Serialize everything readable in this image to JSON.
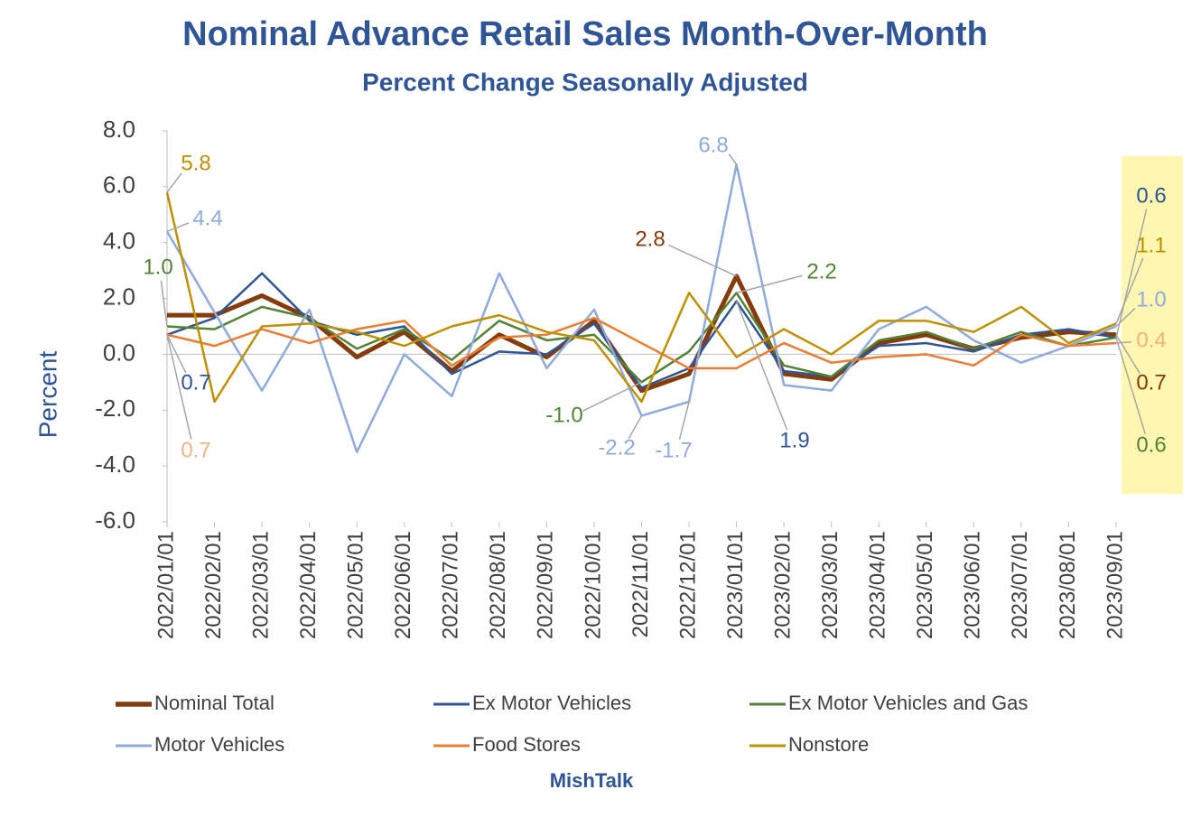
{
  "chart_data": {
    "type": "line",
    "title": "Nominal Advance Retail Sales Month-Over-Month",
    "subtitle": "Percent Change Seasonally Adjusted",
    "y_label": "Percent",
    "footer": "MishTalk",
    "categories": [
      "2022/01/01",
      "2022/02/01",
      "2022/03/01",
      "2022/04/01",
      "2022/05/01",
      "2022/06/01",
      "2022/07/01",
      "2022/08/01",
      "2022/09/01",
      "2022/10/01",
      "2022/11/01",
      "2022/12/01",
      "2023/01/01",
      "2023/02/01",
      "2023/03/01",
      "2023/04/01",
      "2023/05/01",
      "2023/06/01",
      "2023/07/01",
      "2023/08/01",
      "2023/09/01"
    ],
    "ylim": [
      -6,
      8
    ],
    "yticks": [
      {
        "value": -6,
        "label": "-6.0"
      },
      {
        "value": -4,
        "label": "-4.0"
      },
      {
        "value": -2,
        "label": "-2.0"
      },
      {
        "value": 0,
        "label": "0.0"
      },
      {
        "value": 2,
        "label": "2.0"
      },
      {
        "value": 4,
        "label": "4.0"
      },
      {
        "value": 6,
        "label": "6.0"
      },
      {
        "value": 8,
        "label": "8.0"
      }
    ],
    "grid": false,
    "series": [
      {
        "name": "Nominal Total",
        "color": "#843c0c",
        "values": [
          1.4,
          1.4,
          2.1,
          1.3,
          -0.1,
          0.8,
          -0.6,
          0.7,
          -0.1,
          1.2,
          -1.3,
          -0.7,
          2.8,
          -0.7,
          -0.9,
          0.4,
          0.7,
          0.2,
          0.6,
          0.8,
          0.7
        ],
        "value_labels": [
          null,
          null,
          null,
          null,
          null,
          null,
          null,
          null,
          null,
          null,
          null,
          null,
          "2.8",
          null,
          null,
          null,
          null,
          null,
          null,
          null,
          "0.7"
        ]
      },
      {
        "name": "Ex Motor Vehicles",
        "color": "#2f5597",
        "values": [
          0.7,
          1.3,
          2.9,
          1.2,
          0.7,
          1.0,
          -0.7,
          0.1,
          0.0,
          1.1,
          -1.2,
          -0.5,
          1.9,
          -0.6,
          -0.8,
          0.3,
          0.4,
          0.1,
          0.7,
          0.9,
          0.6
        ],
        "value_labels": [
          "0.7",
          null,
          null,
          null,
          null,
          null,
          null,
          null,
          null,
          null,
          null,
          null,
          "1.9",
          null,
          null,
          null,
          null,
          null,
          null,
          null,
          "0.6"
        ]
      },
      {
        "name": "Ex Motor Vehicles and Gas",
        "color": "#548235",
        "values": [
          1.0,
          0.9,
          1.7,
          1.3,
          0.2,
          0.9,
          -0.2,
          1.2,
          0.5,
          0.7,
          -1.0,
          0.1,
          2.2,
          -0.4,
          -0.8,
          0.5,
          0.8,
          0.2,
          0.8,
          0.3,
          0.6
        ],
        "value_labels": [
          "1.0",
          null,
          null,
          null,
          null,
          null,
          null,
          null,
          null,
          null,
          "-1.0",
          null,
          "2.2",
          null,
          null,
          null,
          null,
          null,
          null,
          null,
          "0.6"
        ]
      },
      {
        "name": "Motor Vehicles",
        "color": "#8faadc",
        "values": [
          4.4,
          1.5,
          -1.3,
          1.6,
          -3.5,
          0.0,
          -1.5,
          2.9,
          -0.5,
          1.6,
          -2.2,
          -1.7,
          6.8,
          -1.1,
          -1.3,
          0.9,
          1.7,
          0.5,
          -0.3,
          0.3,
          1.0
        ],
        "value_labels": [
          "4.4",
          null,
          null,
          null,
          null,
          null,
          null,
          null,
          null,
          null,
          "-2.2",
          "-1.7",
          "6.8",
          null,
          null,
          null,
          null,
          null,
          null,
          null,
          "1.0"
        ]
      },
      {
        "name": "Food Stores",
        "color": "#ed7d31",
        "values": [
          0.7,
          0.3,
          0.9,
          0.4,
          0.9,
          1.2,
          -0.4,
          0.6,
          0.7,
          1.3,
          0.4,
          -0.5,
          -0.5,
          0.4,
          -0.3,
          -0.1,
          0.0,
          -0.4,
          0.7,
          0.3,
          0.4
        ],
        "value_labels": [
          "0.7",
          null,
          null,
          null,
          null,
          null,
          null,
          null,
          null,
          null,
          null,
          null,
          null,
          null,
          null,
          null,
          null,
          null,
          null,
          null,
          "0.4"
        ]
      },
      {
        "name": "Nonstore",
        "color": "#bf9000",
        "values": [
          5.8,
          -1.7,
          1.0,
          1.1,
          0.8,
          0.3,
          1.0,
          1.4,
          0.8,
          0.5,
          -1.7,
          2.2,
          -0.1,
          0.9,
          0.0,
          1.2,
          1.2,
          0.8,
          1.7,
          0.4,
          1.1
        ],
        "value_labels": [
          "5.8",
          null,
          null,
          null,
          null,
          null,
          null,
          null,
          null,
          null,
          null,
          null,
          null,
          null,
          null,
          null,
          null,
          null,
          null,
          null,
          "1.1"
        ]
      }
    ]
  }
}
